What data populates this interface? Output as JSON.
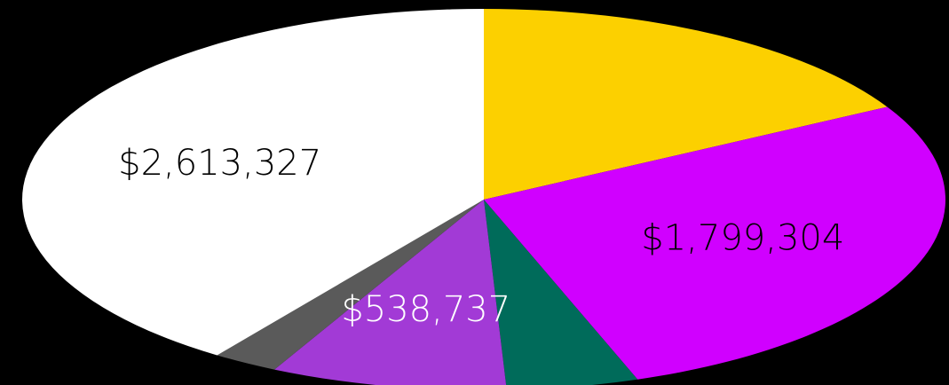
{
  "chart_data": {
    "type": "pie",
    "slices": [
      {
        "value": 1100000,
        "color": "#fcd000"
      },
      {
        "value": 1799304,
        "label": "$1,799,304",
        "color": "#d000ff"
      },
      {
        "value": 300000,
        "color": "#006b5a"
      },
      {
        "value": 538737,
        "label": "$538,737",
        "color": "#a23ad6"
      },
      {
        "value": 150000,
        "color": "#5a5a5a"
      },
      {
        "value": 2613327,
        "label": "$2,613,327",
        "color": "#ffffff"
      }
    ]
  }
}
